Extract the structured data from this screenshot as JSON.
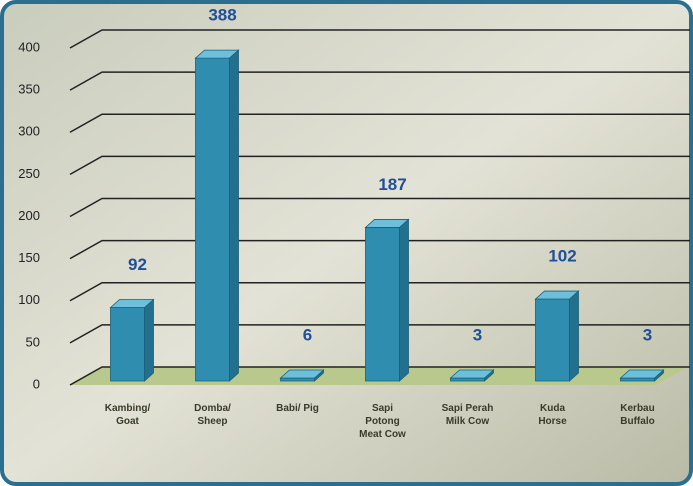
{
  "chart_data": {
    "type": "bar3d",
    "categories": [
      "Kambing/\nGoat",
      "Domba/\nSheep",
      "Babi/ Pig",
      "Sapi\nPotong\nMeat Cow",
      "Sapi Perah\nMilk Cow",
      "Kuda\nHorse",
      "Kerbau\nBuffalo"
    ],
    "values": [
      92,
      388,
      6,
      187,
      3,
      102,
      3
    ],
    "color": "#2f8db0",
    "ylim": [
      0,
      400
    ],
    "yticks": [
      0,
      50,
      100,
      150,
      200,
      250,
      300,
      350,
      400
    ],
    "grid": true
  }
}
